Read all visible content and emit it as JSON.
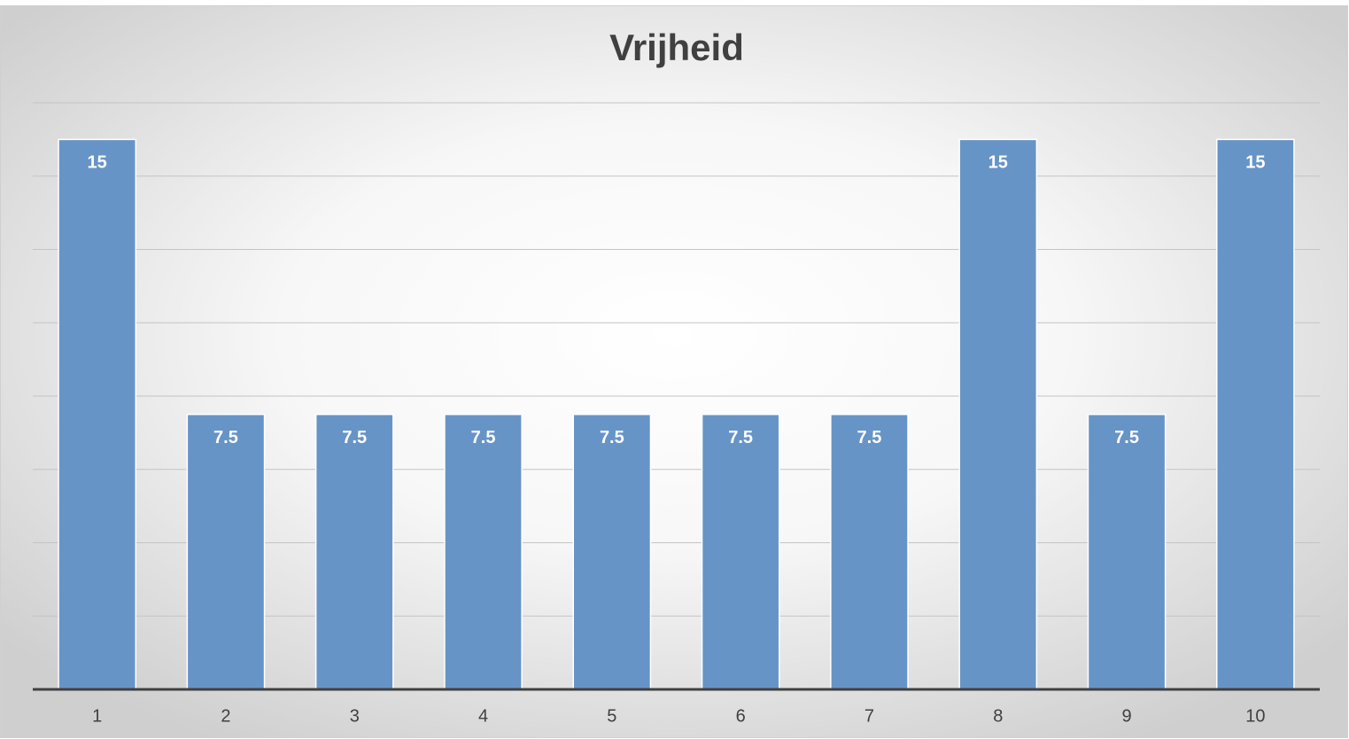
{
  "chart_data": {
    "type": "bar",
    "title": "Vrijheid",
    "categories": [
      "1",
      "2",
      "3",
      "4",
      "5",
      "6",
      "7",
      "8",
      "9",
      "10"
    ],
    "values": [
      15,
      7.5,
      7.5,
      7.5,
      7.5,
      7.5,
      7.5,
      15,
      7.5,
      15
    ],
    "color": "#6794c7",
    "ylim": [
      0,
      16
    ],
    "yticks": [
      0,
      2,
      4,
      6,
      8,
      10,
      12,
      14,
      16
    ],
    "grid": true
  }
}
